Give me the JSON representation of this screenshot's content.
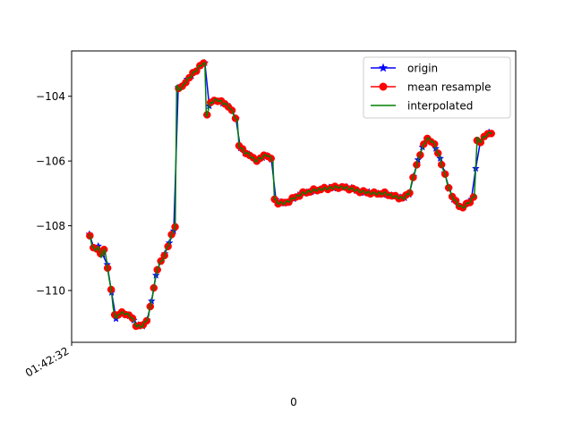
{
  "chart_data": {
    "type": "line",
    "title": "",
    "xlabel": "0",
    "ylabel": "",
    "x_tick_labels": [
      "01:42:32"
    ],
    "y_ticks": [
      -110,
      -108,
      -106,
      -104
    ],
    "y_tick_labels": [
      "−110",
      "−108",
      "−106",
      "−104"
    ],
    "xlim": [
      0,
      300
    ],
    "ylim": [
      -111.6,
      -102.6
    ],
    "grid": false,
    "legend_position": "upper right",
    "legend": [
      "origin",
      "mean resample",
      "interpolated"
    ],
    "colors": {
      "origin": "#0000ff",
      "mean resample": "#ff0000",
      "interpolated": "#008000"
    },
    "markers": {
      "origin": "star",
      "mean resample": "circle",
      "interpolated": "none"
    },
    "profile": [
      [
        12,
        -108.3
      ],
      [
        14,
        -108.6
      ],
      [
        16,
        -108.8
      ],
      [
        18,
        -108.6
      ],
      [
        20,
        -109.0
      ],
      [
        22,
        -108.7
      ],
      [
        24,
        -109.2
      ],
      [
        26,
        -109.8
      ],
      [
        27,
        -110.1
      ],
      [
        28,
        -110.5
      ],
      [
        30,
        -110.9
      ],
      [
        32,
        -110.7
      ],
      [
        36,
        -110.7
      ],
      [
        40,
        -110.8
      ],
      [
        44,
        -111.1
      ],
      [
        48,
        -111.1
      ],
      [
        52,
        -110.8
      ],
      [
        56,
        -109.8
      ],
      [
        58,
        -109.3
      ],
      [
        62,
        -109.0
      ],
      [
        66,
        -108.5
      ],
      [
        70,
        -108.0
      ],
      [
        71,
        -103.7
      ],
      [
        74,
        -103.8
      ],
      [
        76,
        -103.6
      ],
      [
        80,
        -103.4
      ],
      [
        84,
        -103.2
      ],
      [
        88,
        -103.0
      ],
      [
        90,
        -103.0
      ],
      [
        91,
        -104.6
      ],
      [
        94,
        -104.2
      ],
      [
        98,
        -104.1
      ],
      [
        102,
        -104.2
      ],
      [
        106,
        -104.3
      ],
      [
        110,
        -104.6
      ],
      [
        112,
        -104.8
      ],
      [
        113,
        -105.5
      ],
      [
        116,
        -105.7
      ],
      [
        120,
        -105.8
      ],
      [
        124,
        -106.0
      ],
      [
        128,
        -105.9
      ],
      [
        132,
        -105.8
      ],
      [
        136,
        -106.0
      ],
      [
        137,
        -107.2
      ],
      [
        140,
        -107.3
      ],
      [
        144,
        -107.3
      ],
      [
        148,
        -107.2
      ],
      [
        152,
        -107.1
      ],
      [
        156,
        -107.0
      ],
      [
        164,
        -106.9
      ],
      [
        172,
        -106.85
      ],
      [
        180,
        -106.8
      ],
      [
        188,
        -106.85
      ],
      [
        196,
        -106.95
      ],
      [
        204,
        -107.0
      ],
      [
        212,
        -107.0
      ],
      [
        218,
        -107.1
      ],
      [
        224,
        -107.15
      ],
      [
        228,
        -107.0
      ],
      [
        232,
        -106.3
      ],
      [
        236,
        -105.7
      ],
      [
        240,
        -105.3
      ],
      [
        244,
        -105.4
      ],
      [
        248,
        -105.8
      ],
      [
        252,
        -106.4
      ],
      [
        256,
        -107.0
      ],
      [
        260,
        -107.3
      ],
      [
        264,
        -107.45
      ],
      [
        268,
        -107.3
      ],
      [
        272,
        -107.1
      ],
      [
        274,
        -105.3
      ],
      [
        276,
        -105.4
      ],
      [
        280,
        -105.2
      ],
      [
        284,
        -105.1
      ]
    ],
    "series": [
      {
        "name": "origin",
        "values_ref": "profile",
        "spacing": 3.0,
        "style": "line+marker"
      },
      {
        "name": "mean resample",
        "values_ref": "profile",
        "spacing": 2.4,
        "style": "marker"
      },
      {
        "name": "interpolated",
        "values_ref": "profile",
        "spacing": 0.5,
        "style": "line"
      }
    ]
  }
}
